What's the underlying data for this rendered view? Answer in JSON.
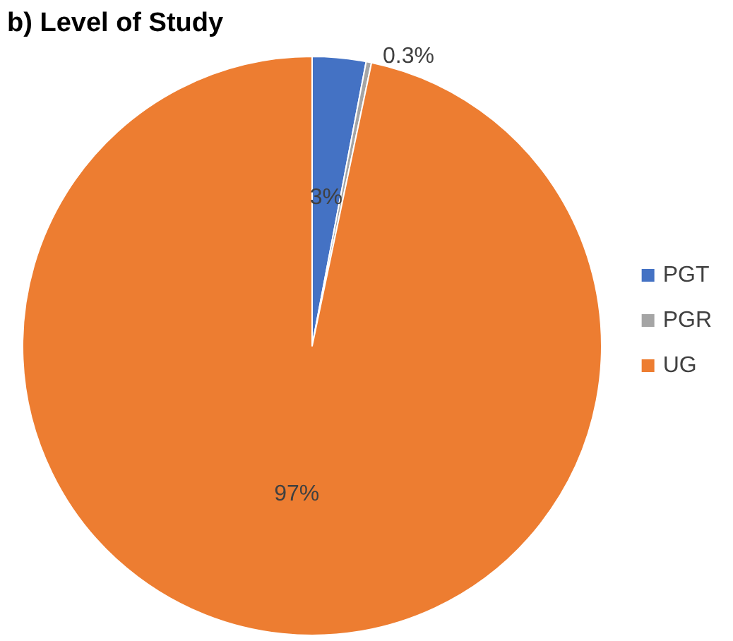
{
  "chart_data": {
    "type": "pie",
    "title": "b) Level of Study",
    "categories": [
      "PGT",
      "PGR",
      "UG"
    ],
    "values": [
      3,
      0.3,
      97
    ],
    "colors": [
      "#4472c4",
      "#a5a5a5",
      "#ed7d31"
    ],
    "value_labels": [
      "3%",
      "0.3%",
      "97%"
    ],
    "legend": "right"
  }
}
